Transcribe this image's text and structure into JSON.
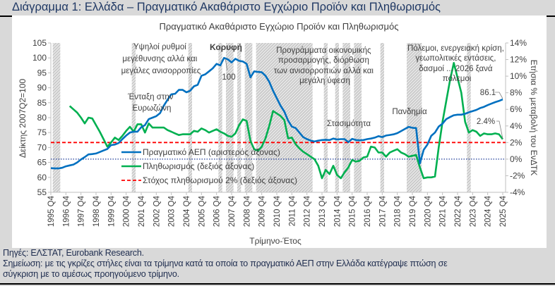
{
  "figure_title": "Διάγραμμα 1: Ελλάδα – Πραγματικό Ακαθάριστο Εγχώριο Προϊόν και Πληθωρισμός",
  "notes": {
    "source": "Πηγές: ΕΛΣΤΑΤ, Eurobank Research.",
    "note_line1": "Σημείωση: με τις γκρίζες στήλες είναι τα τρίμηνα κατά τα οποία το πραγματικό ΑΕΠ στην Ελλάδα κατέγραψε πτώση σε",
    "note_line2": "σύγκριση με το αμέσως προηγούμενο τρίμηνο."
  },
  "colors": {
    "gdp": "#0070c0",
    "inflation": "#00b050",
    "target": "#ff0000",
    "zero_line": "#1f3c99",
    "shading": "#a6a6a6",
    "title": "#1f3864"
  },
  "chart_data": {
    "type": "line",
    "title": "Πραγματικό Ακαθάριστο Εγχώριο Προϊόν και Πληθωρισμός",
    "xlabel": "Τρίμηνο-Έτος",
    "ylabel_left": "Δείκτης 2007Q2=100",
    "ylabel_right": "Ετήσια % μεταβολή του ΕνΔΤΚ",
    "ylim_left": [
      55,
      105
    ],
    "yticks_left": [
      55,
      60,
      65,
      70,
      75,
      80,
      85,
      90,
      95,
      100,
      105
    ],
    "ylim_right": [
      -4,
      14
    ],
    "yticks_right": [
      "-4%",
      "-2%",
      "0%",
      "2%",
      "4%",
      "6%",
      "8%",
      "10%",
      "12%",
      "14%"
    ],
    "xticks": [
      "1995 Q4",
      "1996 Q4",
      "1997 Q4",
      "1998 Q4",
      "1999 Q4",
      "2000 Q4",
      "2001 Q4",
      "2002 Q4",
      "2003 Q4",
      "2004 Q4",
      "2005 Q4",
      "2006 Q4",
      "2007 Q4",
      "2008 Q4",
      "2009 Q4",
      "2010 Q4",
      "2011 Q4",
      "2012 Q4",
      "2013 Q4",
      "2014 Q4",
      "2015 Q4",
      "2016 Q4",
      "2017 Q4",
      "2018 Q4",
      "2019 Q4",
      "2020 Q4",
      "2021 Q4",
      "2022 Q4",
      "2023 Q4",
      "2024 Q4",
      "2025 Q4"
    ],
    "grid": false,
    "legend_position": "center-left",
    "series": [
      {
        "name": "Πραγματικό ΑΕΠ (αριστερός άξονας)",
        "axis": "left",
        "frequency": "quarterly",
        "start": "1995Q4",
        "values": [
          63.1,
          63.0,
          63.0,
          63.2,
          63.7,
          64.0,
          64.3,
          65.0,
          66.0,
          66.8,
          67.7,
          67.8,
          68.0,
          68.5,
          69.0,
          69.5,
          70.8,
          71.0,
          71.5,
          72.8,
          74.0,
          75.0,
          75.3,
          75.3,
          76.8,
          77.5,
          79.5,
          80.0,
          80.5,
          81.5,
          84.0,
          86.0,
          87.8,
          88.0,
          89.3,
          89.3,
          88.5,
          89.0,
          90.5,
          91.0,
          94.0,
          94.5,
          95.5,
          96.5,
          98.0,
          97.5,
          100.0,
          99.5,
          98.5,
          99.7,
          99.0,
          98.8,
          98.0,
          93.5,
          95.5,
          95.3,
          95.2,
          94.0,
          92.0,
          89.0,
          86.5,
          84.0,
          82.0,
          79.0,
          77.0,
          76.5,
          75.0,
          73.5,
          72.8,
          72.3,
          72.0,
          72.3,
          72.5,
          72.6,
          72.5,
          73.0,
          72.7,
          72.8,
          72.8,
          71.8,
          72.9,
          72.5,
          72.4,
          72.5,
          72.8,
          73.0,
          73.3,
          73.8,
          73.5,
          74.0,
          74.2,
          74.4,
          74.8,
          75.5,
          76.2,
          76.9,
          76.6,
          76.5,
          64.7,
          69.2,
          71.0,
          73.9,
          75.0,
          77.0,
          78.0,
          79.5,
          80.2,
          80.8,
          81.0,
          81.0,
          81.3,
          81.8,
          82.2,
          82.6,
          83.2,
          83.6,
          84.2,
          84.7,
          85.2,
          85.6,
          86.1
        ]
      },
      {
        "name": "Πληθωρισμός (δεξιός άξονας)",
        "axis": "right",
        "frequency": "quarterly",
        "start": "1997Q1",
        "values": [
          6.4,
          6.0,
          5.6,
          5.0,
          4.3,
          5.0,
          4.9,
          4.1,
          3.3,
          2.4,
          1.5,
          2.0,
          2.6,
          2.3,
          2.8,
          3.4,
          3.9,
          3.3,
          4.2,
          4.2,
          3.2,
          4.3,
          3.8,
          3.8,
          3.8,
          3.8,
          3.5,
          3.3,
          3.1,
          2.9,
          3.0,
          3.0,
          3.0,
          3.4,
          3.3,
          3.7,
          3.5,
          3.2,
          3.4,
          3.6,
          3.3,
          3.1,
          2.8,
          2.7,
          3.1,
          4.1,
          4.8,
          4.6,
          2.2,
          1.2,
          1.0,
          1.5,
          2.5,
          4.0,
          5.8,
          5.5,
          5.2,
          4.7,
          2.5,
          2.6,
          1.8,
          1.3,
          0.9,
          0.6,
          0.3,
          0.0,
          -0.8,
          -2.3,
          -1.3,
          -1.8,
          -0.8,
          -1.9,
          -2.3,
          -1.6,
          -1.0,
          -0.1,
          -0.3,
          -0.2,
          0.2,
          0.3,
          1.5,
          1.4,
          0.8,
          0.8,
          0.3,
          0.8,
          1.0,
          1.2,
          0.8,
          0.6,
          0.3,
          0.4,
          0.5,
          -1.0,
          -2.3,
          -2.2,
          -2.2,
          -2.1,
          1.4,
          4.5,
          7.0,
          9.5,
          11.6,
          9.8,
          8.0,
          4.5,
          3.2,
          3.5,
          3.3,
          2.8,
          3.1,
          3.0,
          3.0,
          3.1,
          3.0,
          2.4
        ]
      },
      {
        "name": "Στόχος πληθωρισμού 2% (δεξιός άξονας)",
        "axis": "right",
        "constant": 2
      }
    ],
    "reference_line_right": 0,
    "shaded_periods": [
      [
        "1996Q1",
        "1996Q2"
      ],
      [
        "2001Q2",
        "2001Q2"
      ],
      [
        "2005Q1",
        "2005Q1"
      ],
      [
        "2007Q1",
        "2007Q1"
      ],
      [
        "2007Q3",
        "2007Q4"
      ],
      [
        "2008Q2",
        "2008Q2"
      ],
      [
        "2008Q4",
        "2009Q1"
      ],
      [
        "2009Q3",
        "2013Q1"
      ],
      [
        "2014Q1",
        "2014Q1"
      ],
      [
        "2014Q4",
        "2014Q4"
      ],
      [
        "2015Q2",
        "2015Q3"
      ],
      [
        "2016Q1",
        "2016Q2"
      ],
      [
        "2017Q4",
        "2017Q4"
      ],
      [
        "2019Q3",
        "2020Q2"
      ],
      [
        "2023Q3",
        "2023Q3"
      ]
    ],
    "data_labels": {
      "peak": "100",
      "gdp_last": "86.1",
      "inflation_last": "2.4%"
    },
    "annotations": {
      "peak": "Κορυφή",
      "boom": [
        "Υψηλοί ρυθμοί",
        "μεγέθυνσης αλλά και",
        "μεγάλες ανισορροπίες"
      ],
      "euro": [
        "Ένταξη στην",
        "Ευρωζώνη"
      ],
      "programs": [
        "Προγράμματα οικονομικής",
        "προσαρμογής, διόρθωση",
        "των ανισορροπιών αλλά και",
        "μεγάλη ύφεση"
      ],
      "stagnation": "Στασιμότητα",
      "pandemic": "Πανδημία",
      "wars": [
        "Πόλεμοι, ενεργειακή κρίση,",
        "γεωπολιτικές εντάσεις,",
        "δασμοί ... 2026 ξανά",
        "πόλεμοι"
      ]
    }
  }
}
